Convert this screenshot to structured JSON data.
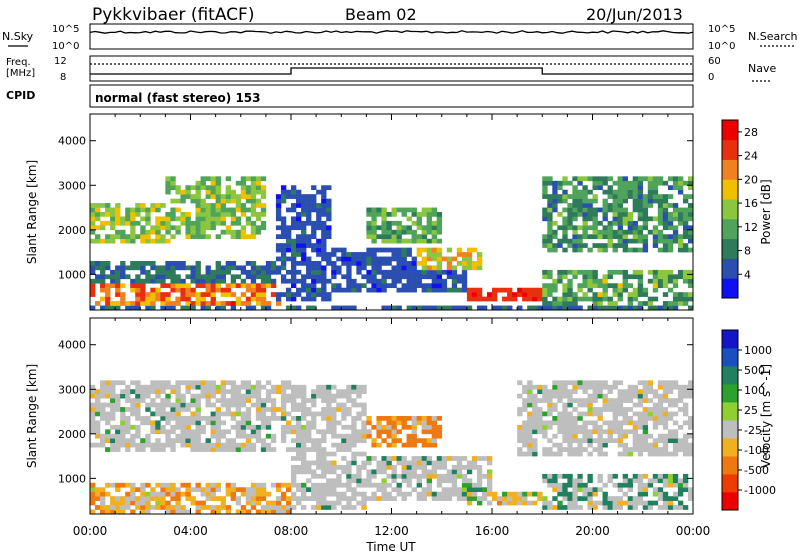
{
  "header": {
    "station": "Pykkvibaer (fitACF)",
    "beam": "Beam 02",
    "date": "20/Jun/2013"
  },
  "nsky_panel": {
    "left_label": "N.Sky",
    "right_label": "N.Search",
    "left_ticks": [
      "10^5",
      "10^0"
    ],
    "right_ticks": [
      "10^5",
      "10^0"
    ]
  },
  "freq_panel": {
    "left_label_1": "Freq.",
    "left_label_2": "[MHz]",
    "right_label": "Nave",
    "left_ticks": [
      "12",
      "8"
    ],
    "right_ticks": [
      "60",
      "0"
    ]
  },
  "cpid_panel": {
    "label": "CPID",
    "text": "normal (fast stereo) 153"
  },
  "colors": {
    "power": [
      "#1010f0",
      "#2a4fb0",
      "#2f7a5a",
      "#4fa35a",
      "#8cc63f",
      "#f0c000",
      "#f08020",
      "#e83010",
      "#ee0000"
    ],
    "velocity": [
      "#1414c8",
      "#1a4fbf",
      "#208060",
      "#2ea02e",
      "#8fd030",
      "#bebebe",
      "#f0b020",
      "#f07810",
      "#ee3c00",
      "#ee0000"
    ],
    "ground_scatter": "#bebebe"
  },
  "chart_data": [
    {
      "type": "heatmap",
      "title": "",
      "ylabel": "Slant Range [km]",
      "xlabel": "",
      "x_ticks": [
        "00:00",
        "04:00",
        "08:00",
        "12:00",
        "16:00",
        "20:00",
        "00:00"
      ],
      "y_ticks": [
        "1000",
        "2000",
        "3000",
        "4000"
      ],
      "ylim": [
        200,
        4600
      ],
      "xlim_hours": [
        0,
        24
      ],
      "colorbar": {
        "label": "Power [dB]",
        "ticks": [
          "4",
          "8",
          "12",
          "16",
          "20",
          "24",
          "28"
        ],
        "range": [
          0,
          30
        ]
      },
      "regions": [
        {
          "t": [
            0.0,
            8.0
          ],
          "r": [
            200,
            800
          ],
          "p": 22,
          "noise": 10
        },
        {
          "t": [
            0.0,
            3.5
          ],
          "r": [
            1700,
            2600
          ],
          "p": 15,
          "noise": 8
        },
        {
          "t": [
            3.0,
            7.0
          ],
          "r": [
            1800,
            3200
          ],
          "p": 14,
          "noise": 8
        },
        {
          "t": [
            0.0,
            7.5
          ],
          "r": [
            800,
            1300
          ],
          "p": 7,
          "noise": 6
        },
        {
          "t": [
            7.5,
            9.5
          ],
          "r": [
            400,
            3000
          ],
          "p": 5,
          "noise": 4
        },
        {
          "t": [
            9.5,
            15.0
          ],
          "r": [
            600,
            1600
          ],
          "p": 5,
          "noise": 4
        },
        {
          "t": [
            11.0,
            14.0
          ],
          "r": [
            1700,
            2500
          ],
          "p": 12,
          "noise": 6
        },
        {
          "t": [
            13.0,
            15.5
          ],
          "r": [
            1100,
            1600
          ],
          "p": 18,
          "noise": 6
        },
        {
          "t": [
            15.0,
            19.0
          ],
          "r": [
            400,
            700
          ],
          "p": 26,
          "noise": 4
        },
        {
          "t": [
            18.0,
            24.0
          ],
          "r": [
            300,
            1100
          ],
          "p": 12,
          "noise": 10
        },
        {
          "t": [
            18.0,
            24.0
          ],
          "r": [
            1500,
            3200
          ],
          "p": 10,
          "noise": 8
        },
        {
          "t": [
            0.0,
            24.0
          ],
          "r": [
            220,
            320
          ],
          "p": 6,
          "noise": 4
        }
      ]
    },
    {
      "type": "heatmap",
      "title": "",
      "ylabel": "Slant Range [km]",
      "xlabel": "Time UT",
      "x_ticks": [
        "00:00",
        "04:00",
        "08:00",
        "12:00",
        "16:00",
        "20:00",
        "00:00"
      ],
      "y_ticks": [
        "1000",
        "2000",
        "3000",
        "4000"
      ],
      "ylim": [
        200,
        4600
      ],
      "xlim_hours": [
        0,
        24
      ],
      "colorbar": {
        "label": "Velocity [m s^-1]",
        "ticks": [
          "1000",
          "500",
          "100",
          "25",
          "-25",
          "-100",
          "-500",
          "-1000"
        ]
      },
      "regions": [
        {
          "t": [
            0.0,
            8.0
          ],
          "r": [
            200,
            900
          ],
          "v": -200,
          "gs": 0.2
        },
        {
          "t": [
            0.0,
            8.0
          ],
          "r": [
            1600,
            3200
          ],
          "v": 0,
          "gs": 0.8
        },
        {
          "t": [
            8.0,
            11.0
          ],
          "r": [
            300,
            3100
          ],
          "v": 0,
          "gs": 0.9
        },
        {
          "t": [
            11.0,
            14.0
          ],
          "r": [
            1700,
            2400
          ],
          "v": -400,
          "gs": 0.2
        },
        {
          "t": [
            11.0,
            16.0
          ],
          "r": [
            500,
            1500
          ],
          "v": 0,
          "gs": 0.7
        },
        {
          "t": [
            15.0,
            19.0
          ],
          "r": [
            400,
            700
          ],
          "v": -150,
          "gs": 0.3
        },
        {
          "t": [
            18.0,
            24.0
          ],
          "r": [
            300,
            1100
          ],
          "v": 100,
          "gs": 0.5
        },
        {
          "t": [
            17.0,
            24.0
          ],
          "r": [
            1500,
            3200
          ],
          "v": 0,
          "gs": 0.9
        }
      ]
    }
  ]
}
